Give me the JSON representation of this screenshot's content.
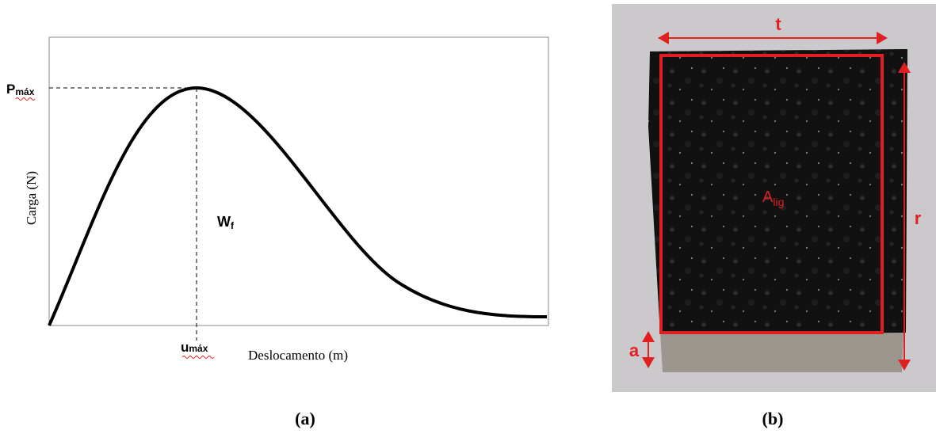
{
  "panel_a": {
    "y_label": "Carga (N)",
    "x_label": "Deslocamento (m)",
    "p_max": {
      "symbol": "P",
      "subscript": "máx"
    },
    "u_max": {
      "symbol": "u",
      "subscript": "máx"
    },
    "w_f": {
      "symbol": "W",
      "subscript": "f"
    },
    "caption": "(a)"
  },
  "panel_b": {
    "width_label": "t",
    "height_label": "r",
    "notch_label": "a",
    "area": {
      "symbol": "A",
      "subscript": "lig"
    },
    "caption": "(b)"
  }
}
